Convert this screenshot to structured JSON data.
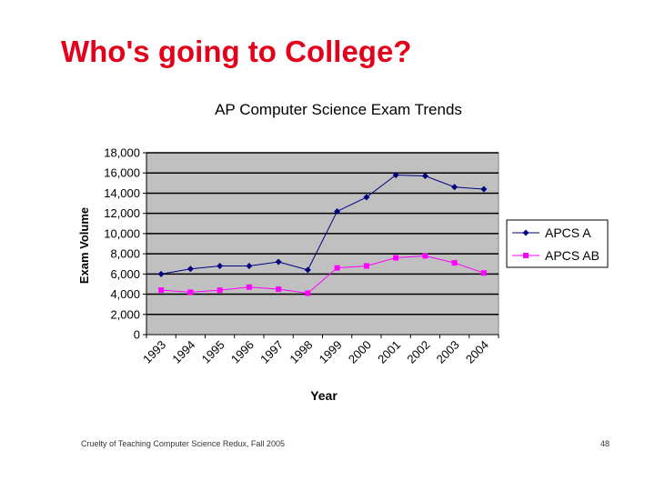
{
  "slide": {
    "title": "Who's going to College?",
    "footer": "Cruelty of Teaching Computer Science Redux, Fall 2005",
    "page_number": "48"
  },
  "chart_data": {
    "type": "line",
    "title": "AP Computer Science Exam Trends",
    "xlabel": "Year",
    "ylabel": "Exam Volume",
    "categories": [
      "1993",
      "1994",
      "1995",
      "1996",
      "1997",
      "1998",
      "1999",
      "2000",
      "2001",
      "2002",
      "2003",
      "2004"
    ],
    "ylim": [
      0,
      18000
    ],
    "yticks": [
      0,
      2000,
      4000,
      6000,
      8000,
      10000,
      12000,
      14000,
      16000,
      18000
    ],
    "ytick_labels": [
      "0",
      "2,000",
      "4,000",
      "6,000",
      "8,000",
      "10,000",
      "12,000",
      "14,000",
      "16,000",
      "18,000"
    ],
    "grid": true,
    "legend_position": "right",
    "series": [
      {
        "name": "APCS A",
        "color": "#000080",
        "marker": "diamond",
        "values": [
          6000,
          6500,
          6800,
          6800,
          7200,
          6400,
          12200,
          13600,
          15800,
          15700,
          14600,
          14400
        ]
      },
      {
        "name": "APCS AB",
        "color": "#ff00ff",
        "marker": "square",
        "values": [
          4400,
          4200,
          4400,
          4700,
          4500,
          4100,
          6600,
          6800,
          7600,
          7800,
          7100,
          6100
        ]
      }
    ]
  }
}
